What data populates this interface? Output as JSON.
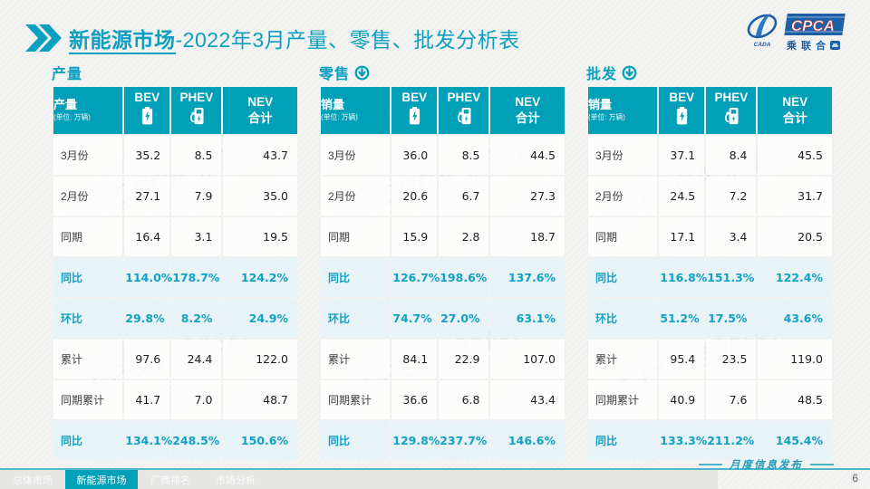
{
  "header": {
    "title_main": "新能源市场",
    "title_rest": "-2022年3月产量、零售、批发分析表"
  },
  "logo": {
    "cpca": "CPCA",
    "cada": "CADA",
    "union": "乘联合"
  },
  "watermark": "CPCA 乘联合",
  "tables": [
    {
      "section": "产量",
      "arrow": false,
      "corner_label": "产量",
      "unit": "(单位: 万辆)",
      "columns": [
        "BEV",
        "PHEV",
        "NEV\n合计"
      ],
      "rows": [
        {
          "label": "3月份",
          "values": [
            "35.2",
            "8.5",
            "43.7"
          ],
          "highlight": false
        },
        {
          "label": "2月份",
          "values": [
            "27.1",
            "7.9",
            "35.0"
          ],
          "highlight": false
        },
        {
          "label": "同期",
          "values": [
            "16.4",
            "3.1",
            "19.5"
          ],
          "highlight": false
        },
        {
          "label": "同比",
          "values": [
            "114.0%",
            "178.7%",
            "124.2%"
          ],
          "highlight": true
        },
        {
          "label": "环比",
          "values": [
            "29.8%",
            "8.2%",
            "24.9%"
          ],
          "highlight": true
        },
        {
          "label": "累计",
          "values": [
            "97.6",
            "24.4",
            "122.0"
          ],
          "highlight": false
        },
        {
          "label": "同期累计",
          "values": [
            "41.7",
            "7.0",
            "48.7"
          ],
          "highlight": false
        },
        {
          "label": "同比",
          "values": [
            "134.1%",
            "248.5%",
            "150.6%"
          ],
          "highlight": true
        }
      ]
    },
    {
      "section": "零售",
      "arrow": true,
      "corner_label": "销量",
      "unit": "(单位: 万辆)",
      "columns": [
        "BEV",
        "PHEV",
        "NEV\n合计"
      ],
      "rows": [
        {
          "label": "3月份",
          "values": [
            "36.0",
            "8.5",
            "44.5"
          ],
          "highlight": false
        },
        {
          "label": "2月份",
          "values": [
            "20.6",
            "6.7",
            "27.3"
          ],
          "highlight": false
        },
        {
          "label": "同期",
          "values": [
            "15.9",
            "2.8",
            "18.7"
          ],
          "highlight": false
        },
        {
          "label": "同比",
          "values": [
            "126.7%",
            "198.6%",
            "137.6%"
          ],
          "highlight": true
        },
        {
          "label": "环比",
          "values": [
            "74.7%",
            "27.0%",
            "63.1%"
          ],
          "highlight": true
        },
        {
          "label": "累计",
          "values": [
            "84.1",
            "22.9",
            "107.0"
          ],
          "highlight": false
        },
        {
          "label": "同期累计",
          "values": [
            "36.6",
            "6.8",
            "43.4"
          ],
          "highlight": false
        },
        {
          "label": "同比",
          "values": [
            "129.8%",
            "237.7%",
            "146.6%"
          ],
          "highlight": true
        }
      ]
    },
    {
      "section": "批发",
      "arrow": true,
      "corner_label": "销量",
      "unit": "(单位: 万辆)",
      "columns": [
        "BEV",
        "PHEV",
        "NEV\n合计"
      ],
      "rows": [
        {
          "label": "3月份",
          "values": [
            "37.1",
            "8.4",
            "45.5"
          ],
          "highlight": false
        },
        {
          "label": "2月份",
          "values": [
            "24.5",
            "7.2",
            "31.7"
          ],
          "highlight": false
        },
        {
          "label": "同期",
          "values": [
            "17.1",
            "3.4",
            "20.5"
          ],
          "highlight": false
        },
        {
          "label": "同比",
          "values": [
            "116.8%",
            "151.3%",
            "122.4%"
          ],
          "highlight": true
        },
        {
          "label": "环比",
          "values": [
            "51.2%",
            "17.5%",
            "43.6%"
          ],
          "highlight": true
        },
        {
          "label": "累计",
          "values": [
            "95.4",
            "23.5",
            "119.0"
          ],
          "highlight": false
        },
        {
          "label": "同期累计",
          "values": [
            "40.9",
            "7.6",
            "48.5"
          ],
          "highlight": false
        },
        {
          "label": "同比",
          "values": [
            "133.3%",
            "211.2%",
            "145.4%"
          ],
          "highlight": true
        }
      ]
    }
  ],
  "footer": {
    "tabs": [
      {
        "label": "总体市场",
        "active": false
      },
      {
        "label": "新能源市场",
        "active": true
      },
      {
        "label": "厂商排名",
        "active": false
      },
      {
        "label": "市场分析",
        "active": false
      }
    ],
    "note": "月度信息发布",
    "page_number": "6"
  },
  "colors": {
    "teal": "#00a0b8",
    "title_teal": "#0d9fc0",
    "highlight_bg": "#e7f3f7",
    "highlight_text": "#12a0c4",
    "logo_blue": "#1b5fa8",
    "footer_line": "#4eb6c9"
  }
}
